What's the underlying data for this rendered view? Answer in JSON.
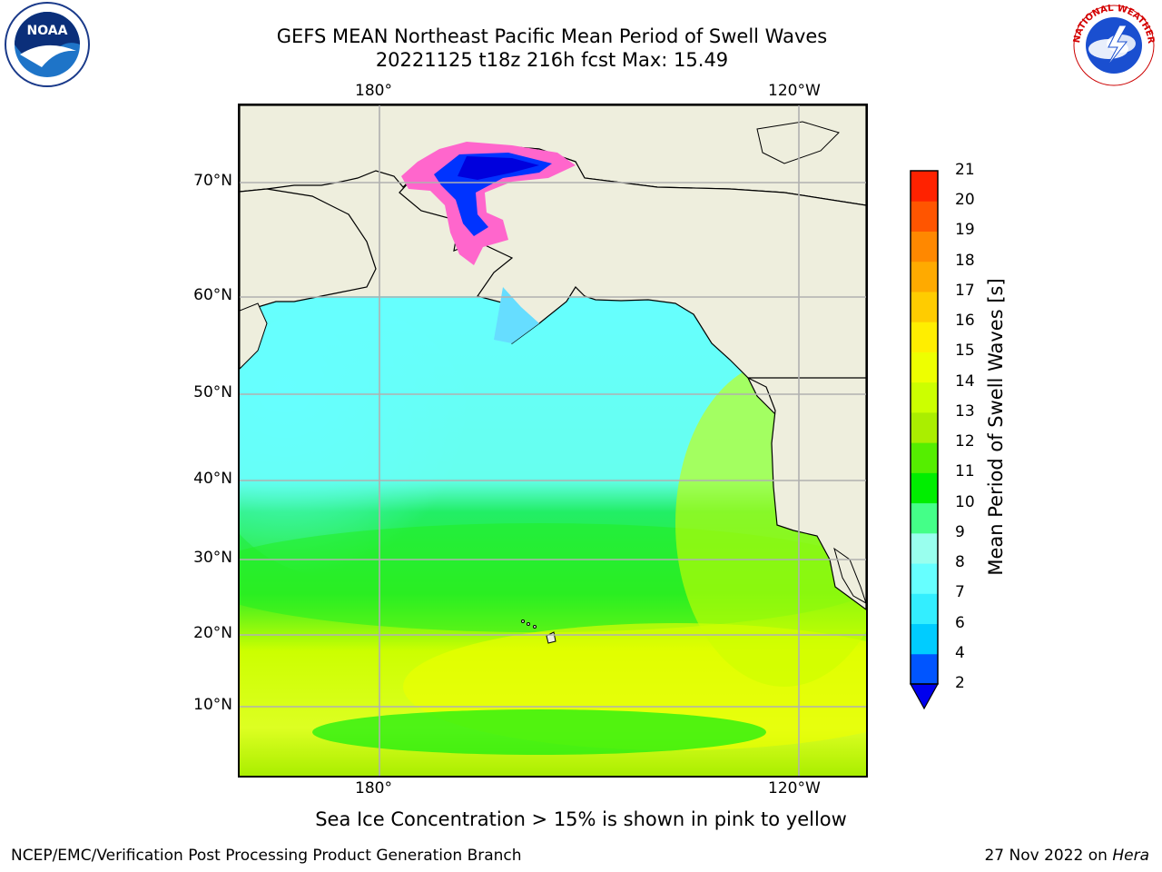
{
  "title": {
    "line1": "GEFS MEAN Northeast Pacific Mean Period of Swell Waves",
    "line2": "20221125 t18z 216h fcst   Max: 15.49"
  },
  "map": {
    "lon_labels_top": [
      "180°",
      "120°W"
    ],
    "lon_labels_bottom": [
      "180°",
      "120°W"
    ],
    "lat_labels": [
      "70°N",
      "60°N",
      "50°N",
      "40°N",
      "30°N",
      "20°N",
      "10°N"
    ],
    "land_color": "#eeeedd",
    "grid_color": "#b0b0b0"
  },
  "colorbar": {
    "label": "Mean Period of Swell Waves [s]",
    "ticks": [
      "2",
      "4",
      "6",
      "7",
      "8",
      "9",
      "10",
      "11",
      "12",
      "13",
      "14",
      "15",
      "16",
      "17",
      "18",
      "19",
      "20",
      "21"
    ],
    "colors": [
      "#0055ff",
      "#00ccff",
      "#33eeff",
      "#66ffff",
      "#99ffee",
      "#44ff88",
      "#00ee00",
      "#55ee00",
      "#aaee00",
      "#ccff00",
      "#eeff00",
      "#ffee00",
      "#ffcc00",
      "#ffaa00",
      "#ff8800",
      "#ff5500",
      "#ff2200"
    ],
    "extend_color": "#0000ee"
  },
  "caption": "Sea Ice Concentration > 15% is shown in pink to yellow",
  "footer": {
    "left": "NCEP/EMC/Verification Post Processing Product Generation Branch",
    "date": "27 Nov 2022 on",
    "machine": "Hera"
  },
  "logos": {
    "noaa": "NOAA",
    "nws": "NATIONAL WEATHER SERVICE"
  }
}
